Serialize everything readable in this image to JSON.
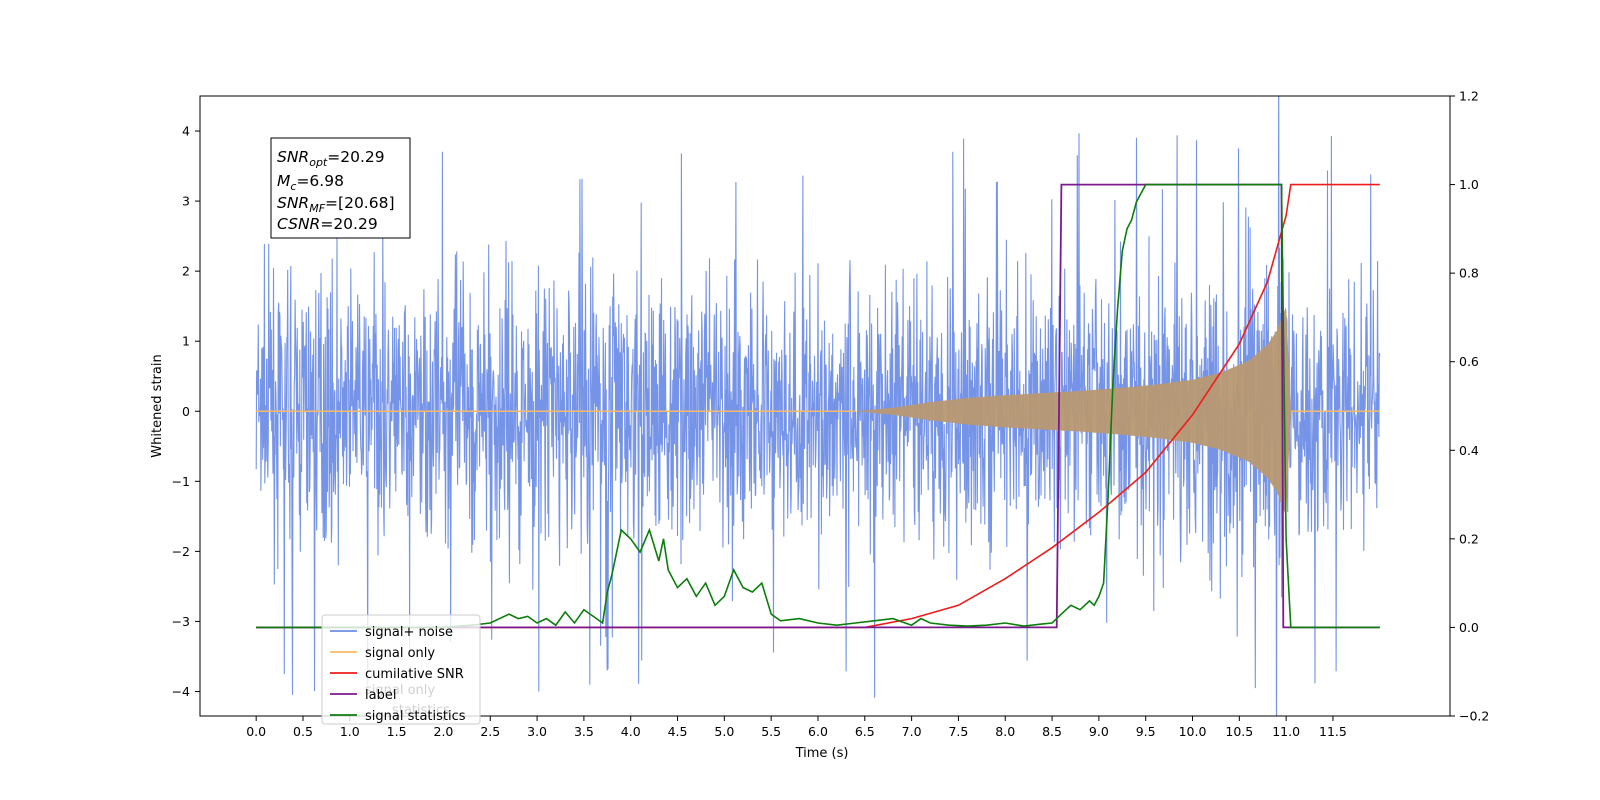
{
  "chart_data": {
    "type": "line",
    "xlabel": "Time (s)",
    "ylabel": "Whitened strain",
    "xlim": [
      -0.6,
      12.75
    ],
    "ylim": [
      -4.35,
      4.5
    ],
    "ylim_right": [
      -0.2,
      1.2
    ],
    "x_ticks": [
      "0.0",
      "0.5",
      "1.0",
      "1.5",
      "2.0",
      "2.5",
      "3.0",
      "3.5",
      "4.0",
      "4.5",
      "5.0",
      "5.5",
      "6.0",
      "6.5",
      "7.0",
      "7.5",
      "8.0",
      "8.5",
      "9.0",
      "9.5",
      "10.0",
      "10.5",
      "11.0",
      "11.5"
    ],
    "y_ticks_left": [
      "−4",
      "−3",
      "−2",
      "−1",
      "0",
      "1",
      "2",
      "3",
      "4"
    ],
    "y_ticks_right": [
      "−0.2",
      "0.0",
      "0.2",
      "0.4",
      "0.6",
      "0.8",
      "1.0",
      "1.2"
    ],
    "info_box": {
      "snr_opt": {
        "name": "SNR",
        "sub": "opt",
        "value": "=20.29"
      },
      "mc": {
        "name": "M",
        "sub": "c",
        "value": "=6.98"
      },
      "snr_mf": {
        "name": "SNR",
        "sub": "MF",
        "value": "=[20.68]"
      },
      "csnr": {
        "name": "CSNR",
        "value": "=20.29"
      }
    },
    "legend": {
      "placement": "lower-left",
      "items": [
        "signal+ noise",
        "signal only",
        "cumilative SNR",
        "label",
        "signal statistics"
      ],
      "hidden_text": [
        "signal only",
        "statistics"
      ]
    },
    "colors": {
      "noise": "#6f8ee6",
      "signal": "#f5b96b",
      "signal_fill": "#b89872",
      "cumsnr": "#ee1c1c",
      "label": "#7b1a8f",
      "stats": "#0d7d0d"
    },
    "series": [
      {
        "name": "signal+ noise",
        "axis": "left",
        "envelope_x": [
          0.0,
          0.5,
          1.0,
          2.0,
          3.0,
          4.0,
          5.0,
          6.0,
          7.0,
          8.0,
          9.0,
          10.0,
          10.5,
          10.9,
          11.0,
          11.5,
          12.0
        ],
        "envelope_upper": [
          2.5,
          2.6,
          2.5,
          2.6,
          2.5,
          2.6,
          2.5,
          2.6,
          2.5,
          2.5,
          2.6,
          2.7,
          2.9,
          3.2,
          2.5,
          2.5,
          2.5
        ],
        "envelope_lower": [
          -2.0,
          -2.3,
          -2.2,
          -2.3,
          -2.4,
          -2.3,
          -2.4,
          -2.3,
          -2.4,
          -2.3,
          -2.3,
          -2.3,
          -2.5,
          -2.8,
          -2.4,
          -2.2,
          -2.2
        ]
      },
      {
        "name": "signal only",
        "axis": "left",
        "x": [
          0.0,
          6.4,
          6.8,
          7.2,
          7.6,
          8.0,
          8.4,
          8.8,
          9.2,
          9.6,
          10.0,
          10.3,
          10.6,
          10.8,
          10.9,
          11.0,
          11.05,
          12.0
        ],
        "amplitude": [
          0.0,
          0.0,
          0.05,
          0.13,
          0.19,
          0.23,
          0.26,
          0.29,
          0.33,
          0.38,
          0.45,
          0.55,
          0.72,
          0.95,
          1.15,
          1.5,
          0.0,
          0.0
        ]
      },
      {
        "name": "cumilative SNR",
        "axis": "right",
        "x": [
          0.0,
          6.5,
          7.0,
          7.5,
          8.0,
          8.5,
          9.0,
          9.5,
          10.0,
          10.5,
          10.8,
          11.0,
          11.05,
          12.0
        ],
        "y": [
          0.0,
          0.0,
          0.02,
          0.05,
          0.11,
          0.18,
          0.26,
          0.35,
          0.48,
          0.64,
          0.78,
          0.93,
          1.0,
          1.0
        ]
      },
      {
        "name": "label",
        "axis": "right",
        "x": [
          0.0,
          8.55,
          8.6,
          10.95,
          10.97,
          12.0
        ],
        "y": [
          0.0,
          0.0,
          1.0,
          1.0,
          0.0,
          0.0
        ]
      },
      {
        "name": "signal statistics",
        "axis": "right",
        "x": [
          0.0,
          2.0,
          2.3,
          2.5,
          2.7,
          2.8,
          2.9,
          3.0,
          3.1,
          3.2,
          3.3,
          3.4,
          3.5,
          3.6,
          3.7,
          3.75,
          3.8,
          3.9,
          4.0,
          4.1,
          4.2,
          4.3,
          4.35,
          4.4,
          4.5,
          4.6,
          4.7,
          4.8,
          4.9,
          5.0,
          5.1,
          5.2,
          5.3,
          5.4,
          5.5,
          5.6,
          5.8,
          6.0,
          6.2,
          6.4,
          6.6,
          6.8,
          7.0,
          7.1,
          7.2,
          7.4,
          7.6,
          7.8,
          8.0,
          8.2,
          8.4,
          8.5,
          8.6,
          8.7,
          8.8,
          8.9,
          8.95,
          9.0,
          9.05,
          9.1,
          9.15,
          9.2,
          9.25,
          9.3,
          9.35,
          9.4,
          9.45,
          9.5,
          9.6,
          9.8,
          10.0,
          10.5,
          10.9,
          10.95,
          11.0,
          11.05,
          11.1,
          12.0
        ],
        "y": [
          0.0,
          0.0,
          0.005,
          0.01,
          0.03,
          0.02,
          0.025,
          0.01,
          0.02,
          0.005,
          0.035,
          0.01,
          0.04,
          0.025,
          0.01,
          0.08,
          0.12,
          0.22,
          0.2,
          0.17,
          0.22,
          0.15,
          0.2,
          0.13,
          0.09,
          0.11,
          0.07,
          0.1,
          0.05,
          0.07,
          0.13,
          0.09,
          0.08,
          0.1,
          0.03,
          0.015,
          0.02,
          0.01,
          0.005,
          0.01,
          0.015,
          0.02,
          0.005,
          0.02,
          0.01,
          0.005,
          0.003,
          0.005,
          0.01,
          0.003,
          0.008,
          0.01,
          0.03,
          0.05,
          0.04,
          0.06,
          0.05,
          0.07,
          0.1,
          0.3,
          0.55,
          0.72,
          0.85,
          0.9,
          0.92,
          0.96,
          0.98,
          1.0,
          1.0,
          1.0,
          1.0,
          1.0,
          1.0,
          1.0,
          0.2,
          0.0,
          0.0,
          0.0
        ]
      }
    ]
  }
}
